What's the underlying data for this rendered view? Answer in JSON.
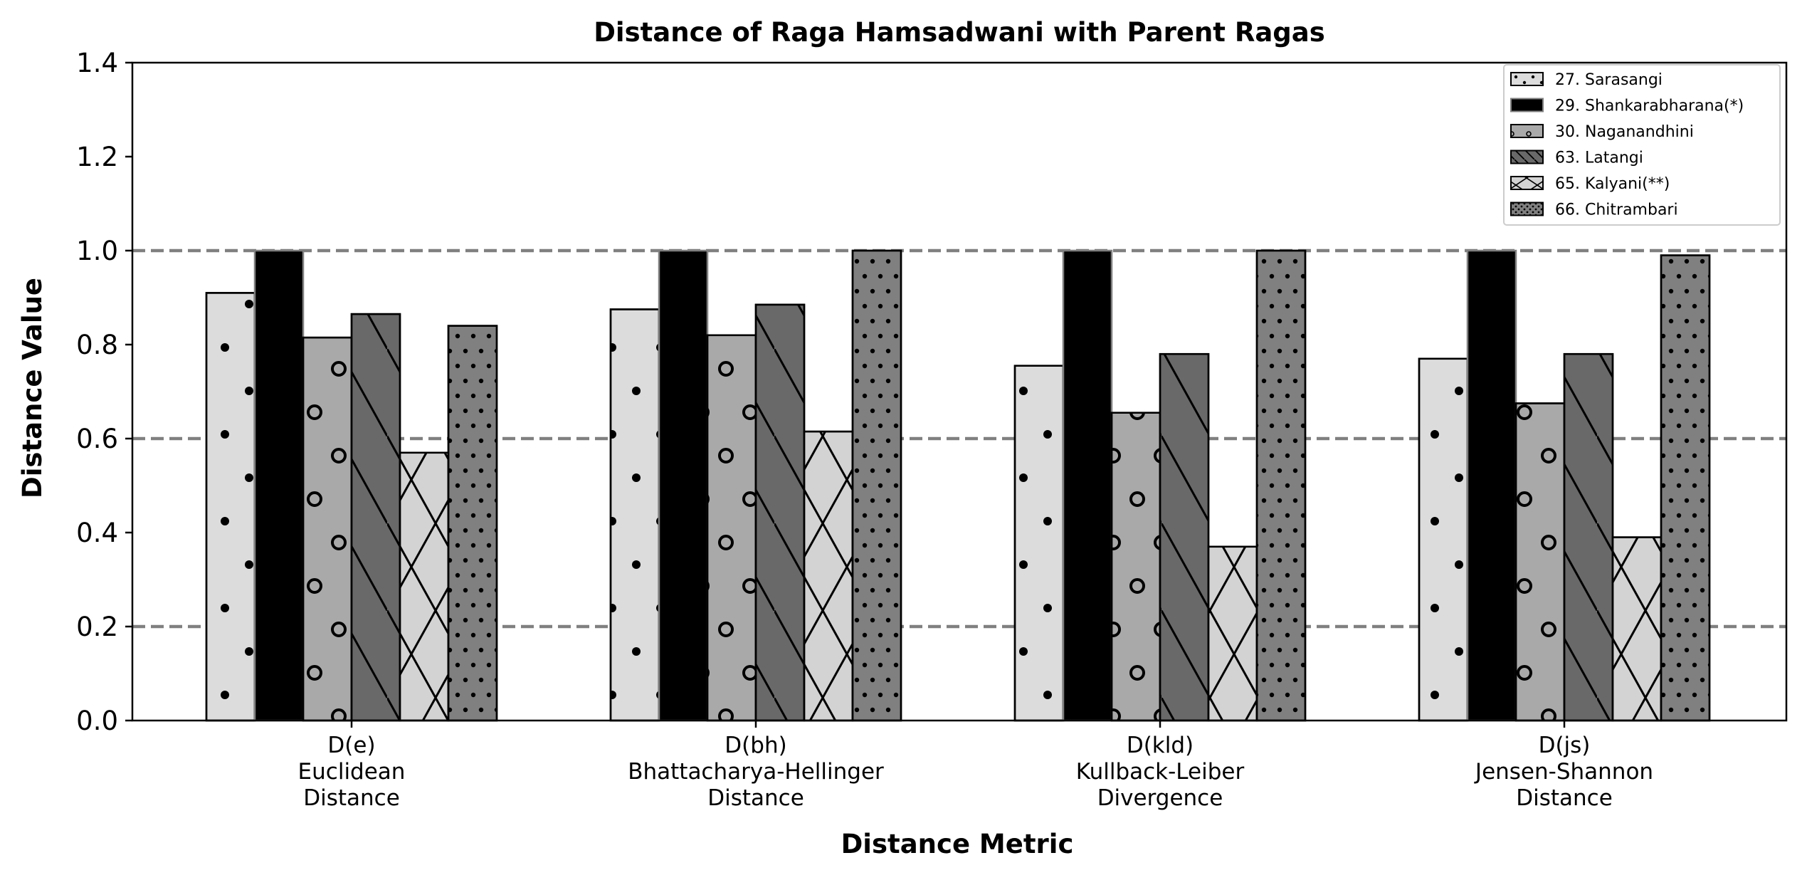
{
  "chart_data": {
    "type": "bar",
    "title": "Distance of Raga Hamsadwani with Parent Ragas",
    "xlabel": "Distance Metric",
    "ylabel": "Distance Value",
    "ylim": [
      0,
      1.4
    ],
    "yticks": [
      "0.0",
      "0.2",
      "0.4",
      "0.6",
      "0.8",
      "1.0",
      "1.2",
      "1.4"
    ],
    "reference_lines": [
      0.2,
      0.6,
      1.0
    ],
    "grid": false,
    "legend_position": "top-right",
    "categories": [
      [
        "D(e)",
        "Euclidean",
        "Distance"
      ],
      [
        "D(bh)",
        "Bhattacharya-Hellinger",
        "Distance"
      ],
      [
        "D(kld)",
        "Kullback-Leiber",
        "Divergence"
      ],
      [
        "D(js)",
        "Jensen-Shannon",
        "Distance"
      ]
    ],
    "series": [
      {
        "name": "27. Sarasangi",
        "values": [
          0.91,
          0.875,
          0.755,
          0.77
        ],
        "color": "#dcdcdc",
        "edge": "#000000",
        "hatch": "dots"
      },
      {
        "name": "29. Shankarabharana(*)",
        "values": [
          1.0,
          1.0,
          1.0,
          1.0
        ],
        "color": "#000000",
        "edge": "#808080",
        "hatch": "none"
      },
      {
        "name": "30. Naganandhini",
        "values": [
          0.815,
          0.82,
          0.655,
          0.675
        ],
        "color": "#a9a9a9",
        "edge": "#000000",
        "hatch": "rings"
      },
      {
        "name": "63. Latangi",
        "values": [
          0.865,
          0.885,
          0.78,
          0.78
        ],
        "color": "#696969",
        "edge": "#000000",
        "hatch": "diagonal"
      },
      {
        "name": "65. Kalyani(**)",
        "values": [
          0.57,
          0.615,
          0.37,
          0.39
        ],
        "color": "#d3d3d3",
        "edge": "#000000",
        "hatch": "cross"
      },
      {
        "name": "66. Chitrambari",
        "values": [
          0.84,
          1.0,
          1.0,
          0.99
        ],
        "color": "#808080",
        "edge": "#000000",
        "hatch": "small-dots"
      }
    ]
  }
}
